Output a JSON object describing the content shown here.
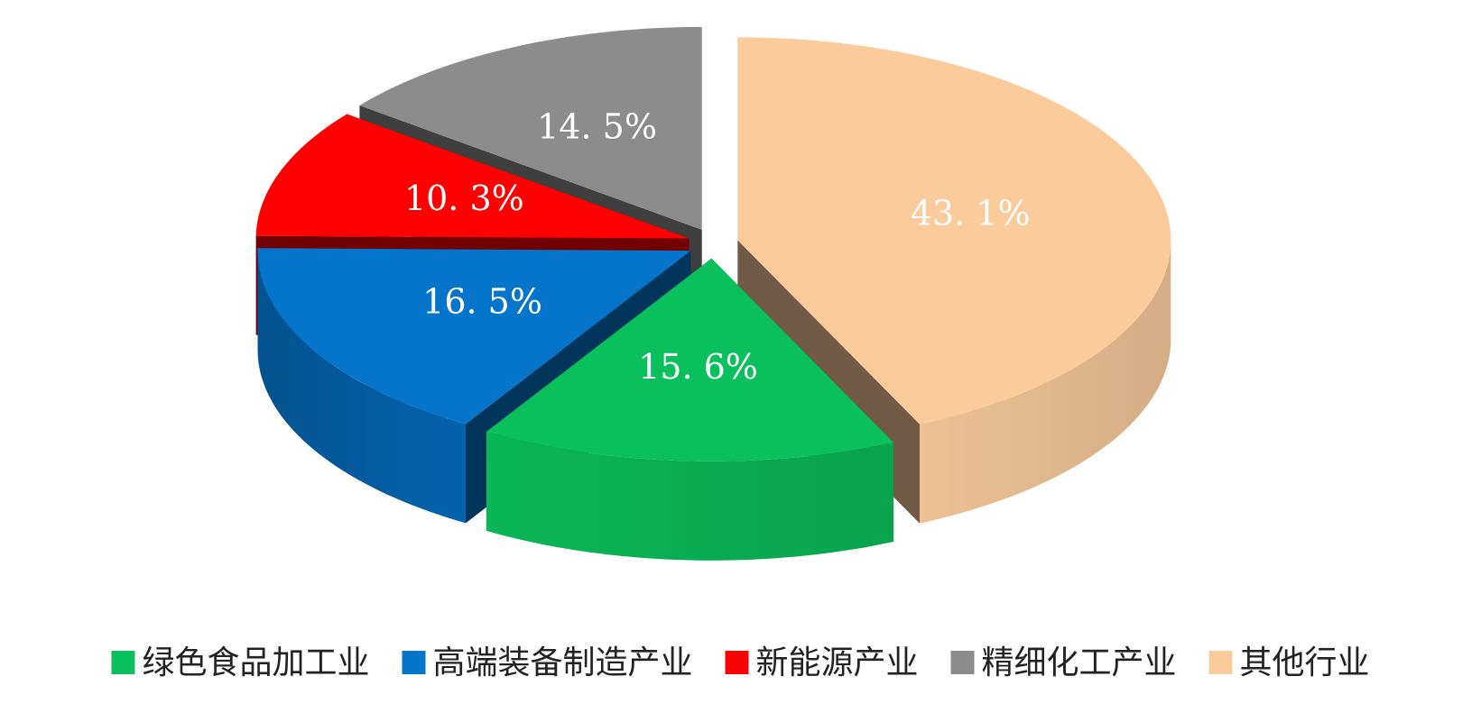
{
  "chart_data": {
    "type": "pie",
    "categories": [
      "绿色食品加工业",
      "高端装备制造产业",
      "新能源产业",
      "精细化工产业",
      "其他行业"
    ],
    "values": [
      15.6,
      16.5,
      10.3,
      14.5,
      43.1
    ],
    "value_labels": [
      "15. 6%",
      "16. 5%",
      "10. 3%",
      "14. 5%",
      "43. 1%"
    ],
    "colors": [
      "#0ac05c",
      "#0575cc",
      "#ff0000",
      "#8c8c8c",
      "#fbcb9c"
    ],
    "legend": "bottom"
  }
}
